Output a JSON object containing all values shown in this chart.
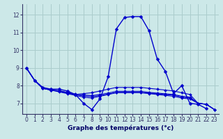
{
  "title": "Graphe des températures (°c)",
  "bg_color": "#cce8e8",
  "grid_color": "#aacccc",
  "line_color": "#0000cc",
  "axis_color": "#333366",
  "xlim": [
    -0.5,
    23.5
  ],
  "ylim": [
    6.4,
    12.6
  ],
  "yticks": [
    7,
    8,
    9,
    10,
    11,
    12
  ],
  "xticks": [
    0,
    1,
    2,
    3,
    4,
    5,
    6,
    7,
    8,
    9,
    10,
    11,
    12,
    13,
    14,
    15,
    16,
    17,
    18,
    19,
    20,
    21,
    22,
    23
  ],
  "series": [
    [
      9.0,
      8.3,
      7.9,
      7.8,
      7.8,
      7.7,
      7.5,
      7.0,
      6.65,
      7.25,
      8.5,
      11.2,
      11.85,
      11.9,
      11.9,
      11.1,
      9.5,
      8.8,
      7.55,
      8.0,
      7.0,
      6.95,
      6.7,
      null
    ],
    [
      9.0,
      8.3,
      7.85,
      7.75,
      7.7,
      7.6,
      7.5,
      7.55,
      7.6,
      7.7,
      7.8,
      7.9,
      7.9,
      7.9,
      7.9,
      7.85,
      7.8,
      7.75,
      7.7,
      7.6,
      7.5,
      7.0,
      6.95,
      6.65
    ],
    [
      9.0,
      8.3,
      7.85,
      7.75,
      7.65,
      7.55,
      7.45,
      7.35,
      7.3,
      7.4,
      7.5,
      7.6,
      7.6,
      7.6,
      7.6,
      7.55,
      7.5,
      7.45,
      7.4,
      7.3,
      7.25,
      7.0,
      6.95,
      6.65
    ],
    [
      9.0,
      8.3,
      7.85,
      7.75,
      7.68,
      7.58,
      7.48,
      7.42,
      7.38,
      7.44,
      7.52,
      7.62,
      7.62,
      7.62,
      7.62,
      7.58,
      7.54,
      7.5,
      7.46,
      7.36,
      7.3,
      7.0,
      6.95,
      6.65
    ],
    [
      9.0,
      8.3,
      7.85,
      7.75,
      7.72,
      7.62,
      7.52,
      7.48,
      7.44,
      7.5,
      7.58,
      7.68,
      7.68,
      7.68,
      7.68,
      7.62,
      7.58,
      7.54,
      7.5,
      7.4,
      7.35,
      7.0,
      6.95,
      6.65
    ]
  ]
}
